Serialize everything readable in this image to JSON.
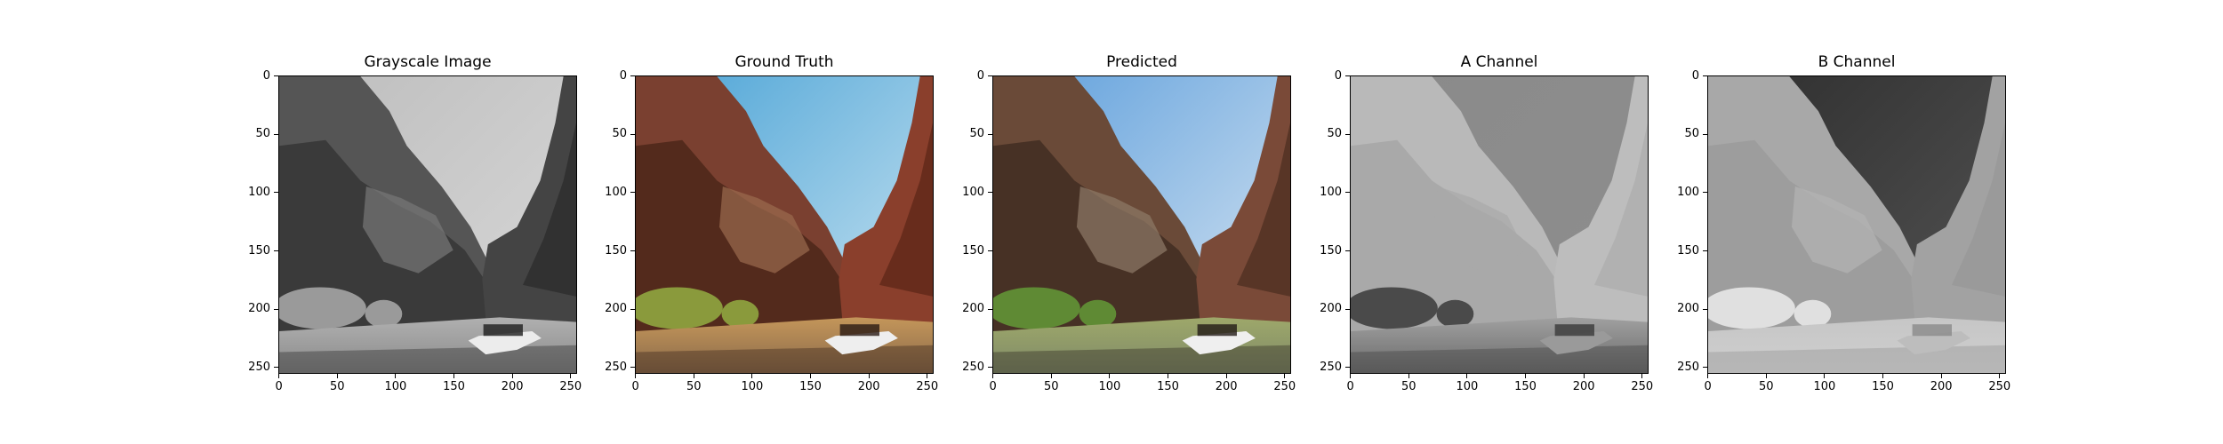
{
  "panels": [
    {
      "title": "Grayscale Image",
      "mode": "gray"
    },
    {
      "title": "Ground Truth",
      "mode": "color"
    },
    {
      "title": "Predicted",
      "mode": "pred"
    },
    {
      "title": "A Channel",
      "mode": "achan"
    },
    {
      "title": "B Channel",
      "mode": "bchan"
    }
  ],
  "axes": {
    "x_ticks": [
      "0",
      "50",
      "100",
      "150",
      "200",
      "250"
    ],
    "y_ticks": [
      "0",
      "50",
      "100",
      "150",
      "200",
      "250"
    ],
    "x_values": [
      0,
      50,
      100,
      150,
      200,
      250
    ],
    "y_values": [
      0,
      50,
      100,
      150,
      200,
      250
    ],
    "range": [
      0,
      256
    ]
  },
  "colors": {
    "sky_blue": "#5aa9d6",
    "rock_red": "#7a3a2a",
    "water_tan": "#b98c54",
    "veg_green": "#6f8a2e"
  }
}
